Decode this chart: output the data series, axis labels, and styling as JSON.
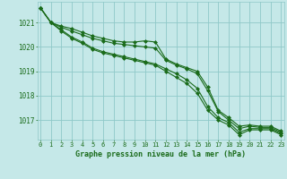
{
  "x": [
    0,
    1,
    2,
    3,
    4,
    5,
    6,
    7,
    8,
    9,
    10,
    11,
    12,
    13,
    14,
    15,
    16,
    17,
    18,
    19,
    20,
    21,
    22,
    23
  ],
  "line1": [
    1021.6,
    1021.0,
    1020.85,
    1020.75,
    1020.6,
    1020.45,
    1020.35,
    1020.25,
    1020.2,
    1020.2,
    1020.25,
    1020.2,
    1019.5,
    1019.3,
    1019.15,
    1019.0,
    1018.35,
    1017.4,
    1017.1,
    1016.75,
    1016.8,
    1016.75,
    1016.75,
    1016.55
  ],
  "line2": [
    1021.6,
    1021.0,
    1020.8,
    1020.65,
    1020.5,
    1020.35,
    1020.25,
    1020.15,
    1020.1,
    1020.05,
    1020.0,
    1019.95,
    1019.45,
    1019.25,
    1019.1,
    1018.9,
    1018.2,
    1017.35,
    1017.0,
    1016.65,
    1016.75,
    1016.7,
    1016.7,
    1016.5
  ],
  "line3": [
    1021.6,
    1021.0,
    1020.7,
    1020.4,
    1020.2,
    1019.95,
    1019.8,
    1019.7,
    1019.6,
    1019.5,
    1019.4,
    1019.3,
    1019.1,
    1018.9,
    1018.65,
    1018.3,
    1017.55,
    1017.1,
    1016.9,
    1016.5,
    1016.65,
    1016.65,
    1016.65,
    1016.45
  ],
  "line4": [
    1021.6,
    1021.0,
    1020.65,
    1020.35,
    1020.15,
    1019.9,
    1019.75,
    1019.65,
    1019.55,
    1019.45,
    1019.35,
    1019.25,
    1019.0,
    1018.75,
    1018.5,
    1018.1,
    1017.4,
    1017.0,
    1016.8,
    1016.4,
    1016.6,
    1016.6,
    1016.6,
    1016.4
  ],
  "yticks": [
    1017,
    1018,
    1019,
    1020,
    1021
  ],
  "xticks": [
    0,
    1,
    2,
    3,
    4,
    5,
    6,
    7,
    8,
    9,
    10,
    11,
    12,
    13,
    14,
    15,
    16,
    17,
    18,
    19,
    20,
    21,
    22,
    23
  ],
  "xlabel": "Graphe pression niveau de la mer (hPa)",
  "line_color": "#1a6b1a",
  "bg_color": "#c5e8e8",
  "grid_color": "#8fc8c8",
  "text_color": "#1a6b1a",
  "ylim": [
    1016.2,
    1021.85
  ],
  "xlim": [
    -0.3,
    23.3
  ]
}
